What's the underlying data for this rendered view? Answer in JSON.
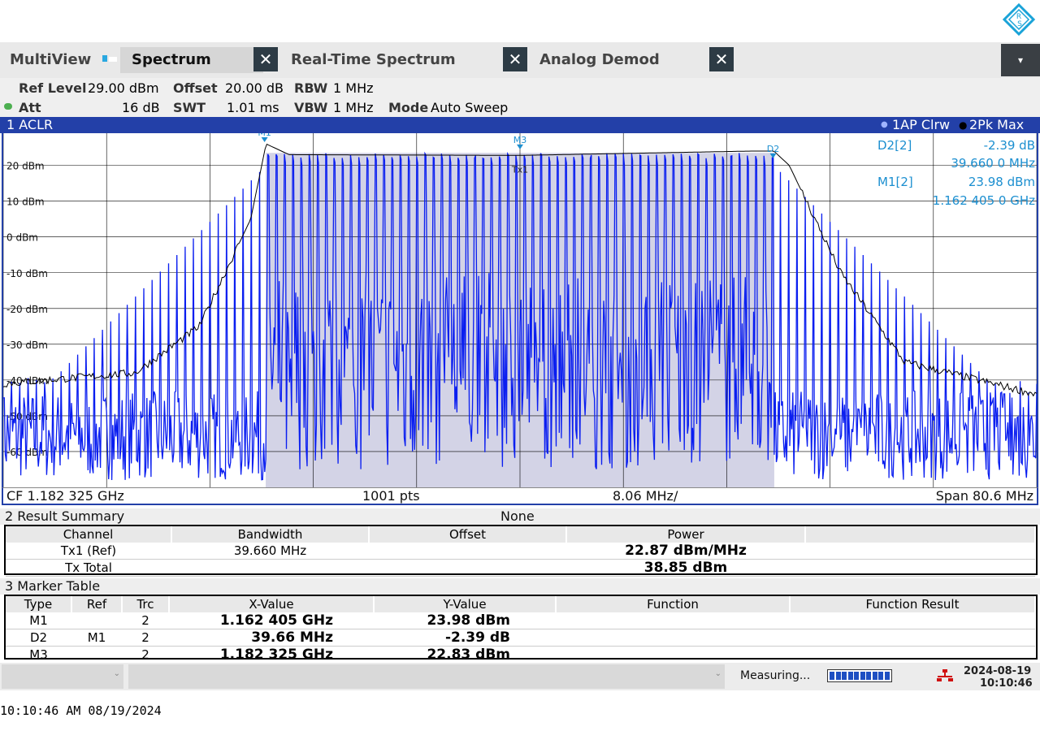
{
  "tabs": {
    "multiview": "MultiView",
    "items": [
      {
        "label": "Spectrum",
        "active": true
      },
      {
        "label": "Real-Time Spectrum",
        "active": false
      },
      {
        "label": "Analog Demod",
        "active": false
      }
    ],
    "close_glyph": "✕",
    "dropdown_glyph": "▾"
  },
  "params": {
    "ref_level_label": "Ref Level",
    "ref_level": "29.00 dBm",
    "offset_label": "Offset",
    "offset": "20.00 dB",
    "rbw_label": "RBW",
    "rbw": "1 MHz",
    "att_label": "Att",
    "att": "16 dB",
    "swt_label": "SWT",
    "swt": "1.01 ms",
    "vbw_label": "VBW",
    "vbw": "1 MHz",
    "mode_label": "Mode",
    "mode": "Auto Sweep"
  },
  "window1": {
    "title": "1 ACLR",
    "trace1": "1AP Clrw",
    "trace2": "2Pk Max",
    "y_ticks": [
      "20 dBm",
      "10 dBm",
      "0 dBm",
      "-10 dBm",
      "-20 dBm",
      "-30 dBm",
      "-40 dBm",
      "-50 dBm",
      "-60 dBm"
    ],
    "markers": {
      "m1": "M1",
      "m3": "M3",
      "d2": "D2",
      "tx": "Tx1"
    },
    "readout": {
      "d2_label": "D2[2]",
      "d2_value": "-2.39 dB",
      "d2_freq": "39.660 0 MHz",
      "m1_label": "M1[2]",
      "m1_value": "23.98 dBm",
      "m1_freq": "1.162 405 0 GHz"
    },
    "footer": {
      "cf": "CF 1.182 325 GHz",
      "pts": "1001 pts",
      "div": "8.06 MHz/",
      "span": "Span 80.6 MHz"
    },
    "colors": {
      "trace1": "#0a1ef0",
      "trace2": "#000000",
      "channel_fill": "#c8c8e0",
      "frame": "#2340a8",
      "marker_text": "#1c8fd0"
    }
  },
  "chart_data": {
    "type": "line",
    "title": "1 ACLR",
    "xlabel": "",
    "ylabel": "",
    "x_center_ghz": 1.182325,
    "x_span_mhz": 80.6,
    "ylim": [
      -70,
      29
    ],
    "grid": true,
    "series": [
      {
        "name": "1AP Clrw",
        "note": "",
        "x_mhz_offset": [
          -40.3,
          -24.5,
          -20,
          -15,
          -10,
          0,
          10,
          15,
          20,
          24.5,
          40.3
        ],
        "y": [
          -58,
          -50,
          24,
          23,
          22.5,
          22.8,
          23.2,
          23.5,
          23.8,
          -50,
          -58
        ]
      },
      {
        "name": "2Pk Max",
        "note": "",
        "x_mhz_offset": [
          -40.3,
          -30,
          -25,
          -21,
          -19.8,
          -18,
          0,
          18,
          19.8,
          21,
          25,
          30,
          40.3
        ],
        "y": [
          -41,
          -38,
          -25,
          5,
          26,
          23,
          22.8,
          24,
          24,
          20,
          -10,
          -35,
          -44
        ]
      }
    ]
  },
  "window2": {
    "title": "2 Result Summary",
    "center_label": "None",
    "headers": [
      "Channel",
      "Bandwidth",
      "Offset",
      "Power",
      ""
    ],
    "rows": [
      [
        "Tx1 (Ref)",
        "39.660 MHz",
        "",
        "22.87 dBm/MHz",
        ""
      ],
      [
        "Tx Total",
        "",
        "",
        "38.85 dBm",
        ""
      ]
    ]
  },
  "window3": {
    "title": "3 Marker Table",
    "headers": [
      "Type",
      "Ref",
      "Trc",
      "X-Value",
      "Y-Value",
      "Function",
      "Function Result"
    ],
    "rows": [
      [
        "M1",
        "",
        "2",
        "1.162 405 GHz",
        "23.98 dBm",
        "",
        ""
      ],
      [
        "D2",
        "M1",
        "2",
        "39.66 MHz",
        "-2.39 dB",
        "",
        ""
      ],
      [
        "M3",
        "",
        "2",
        "1.182 325 GHz",
        "22.83 dBm",
        "",
        ""
      ]
    ]
  },
  "status": {
    "measuring": "Measuring...",
    "progress": 0.95,
    "date": "2024-08-19",
    "time": "10:10:46"
  },
  "footer_timestamp": "10:10:46 AM  08/19/2024"
}
